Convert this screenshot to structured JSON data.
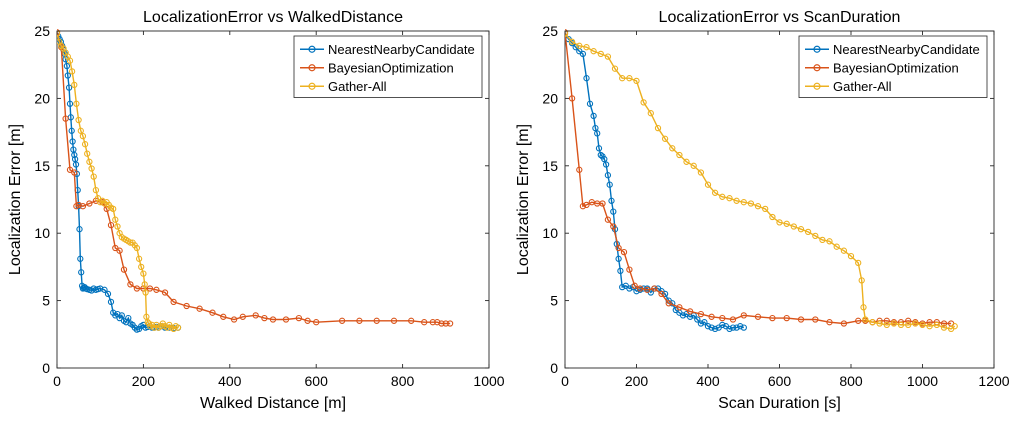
{
  "chart_data": [
    {
      "type": "line",
      "title": "LocalizationError vs WalkedDistance",
      "xlabel": "Walked Distance [m]",
      "ylabel": "Localization Error [m]",
      "xlim": [
        0,
        1000
      ],
      "ylim": [
        0,
        25
      ],
      "xticks": [
        0,
        200,
        400,
        600,
        800,
        1000
      ],
      "yticks": [
        0,
        5,
        10,
        15,
        20,
        25
      ],
      "legend_position": "top-right",
      "grid": false,
      "series": [
        {
          "name": "NearestNearbyCandidate",
          "color": "#0072BD",
          "x": [
            0,
            3,
            6,
            9,
            12,
            15,
            18,
            20,
            23,
            25,
            28,
            30,
            32,
            34,
            36,
            38,
            40,
            42,
            44,
            46,
            48,
            50,
            52,
            54,
            56,
            58,
            60,
            62,
            64,
            67,
            70,
            75,
            80,
            85,
            90,
            95,
            100,
            110,
            118,
            125,
            130,
            135,
            140,
            145,
            150,
            155,
            160,
            165,
            170,
            175,
            180,
            185,
            190,
            195,
            200,
            205,
            210,
            215,
            220,
            225,
            230,
            235,
            240,
            250,
            260,
            270,
            280
          ],
          "y": [
            24.8,
            24.6,
            24.4,
            24.2,
            23.9,
            23.6,
            23.3,
            22.9,
            22.4,
            21.7,
            20.8,
            19.6,
            18.6,
            17.6,
            16.8,
            16.2,
            15.8,
            15.5,
            15.1,
            14.4,
            13.2,
            12.0,
            10.3,
            8.1,
            7.1,
            6.1,
            5.9,
            5.95,
            6.0,
            5.9,
            5.85,
            5.8,
            5.75,
            5.9,
            5.8,
            5.85,
            5.9,
            5.8,
            5.5,
            4.9,
            4.1,
            3.9,
            4.0,
            3.7,
            3.9,
            3.5,
            3.4,
            3.7,
            3.3,
            3.2,
            3.0,
            2.85,
            2.9,
            3.1,
            3.2,
            3.0,
            3.05,
            3.1,
            3.0,
            3.0,
            3.05,
            3.0,
            3.1,
            3.0,
            3.0,
            2.95,
            3.0
          ]
        },
        {
          "name": "BayesianOptimization",
          "color": "#D95319",
          "x": [
            0,
            10,
            20,
            30,
            40,
            45,
            50,
            60,
            75,
            90,
            105,
            115,
            125,
            135,
            145,
            155,
            170,
            185,
            200,
            215,
            230,
            250,
            270,
            300,
            330,
            360,
            385,
            410,
            430,
            460,
            480,
            500,
            530,
            560,
            580,
            600,
            660,
            700,
            740,
            780,
            820,
            850,
            870,
            880,
            890,
            900,
            910
          ],
          "y": [
            24.9,
            23.8,
            18.5,
            14.7,
            14.5,
            12.0,
            12.1,
            12.0,
            12.2,
            12.4,
            12.3,
            11.8,
            10.6,
            8.9,
            8.7,
            7.3,
            6.2,
            5.9,
            5.9,
            5.9,
            5.8,
            5.6,
            4.9,
            4.6,
            4.4,
            4.1,
            3.8,
            3.6,
            3.8,
            3.9,
            3.7,
            3.6,
            3.6,
            3.7,
            3.5,
            3.4,
            3.5,
            3.5,
            3.5,
            3.5,
            3.5,
            3.4,
            3.4,
            3.4,
            3.3,
            3.3,
            3.3
          ]
        },
        {
          "name": "Gather-All",
          "color": "#EDB120",
          "x": [
            0,
            5,
            10,
            15,
            20,
            25,
            30,
            35,
            40,
            45,
            50,
            55,
            60,
            65,
            70,
            75,
            80,
            85,
            90,
            95,
            100,
            105,
            110,
            115,
            120,
            125,
            130,
            135,
            140,
            145,
            150,
            155,
            160,
            165,
            170,
            175,
            180,
            185,
            190,
            195,
            200,
            203,
            205,
            207,
            210,
            213,
            216,
            220,
            225,
            230,
            235,
            240,
            245,
            250,
            255,
            260,
            265,
            270,
            275,
            280
          ],
          "y": [
            24.8,
            24.2,
            23.9,
            23.7,
            23.4,
            23.1,
            22.8,
            22.0,
            21.0,
            19.6,
            18.4,
            17.6,
            17.2,
            16.6,
            15.9,
            15.3,
            14.8,
            14.2,
            13.2,
            12.6,
            12.3,
            12.4,
            12.2,
            12.3,
            12.1,
            11.9,
            11.8,
            11.0,
            10.5,
            10.0,
            9.7,
            9.6,
            9.5,
            9.4,
            9.3,
            9.3,
            9.1,
            8.9,
            8.1,
            7.5,
            7.0,
            6.2,
            5.6,
            3.8,
            3.4,
            3.3,
            3.1,
            3.2,
            3.0,
            3.2,
            3.0,
            3.1,
            3.3,
            3.1,
            3.0,
            3.2,
            3.0,
            2.9,
            3.1,
            3.0
          ]
        }
      ]
    },
    {
      "type": "line",
      "title": "LocalizationError vs ScanDuration",
      "xlabel": "Scan Duration [s]",
      "ylabel": "Localization Error [m]",
      "xlim": [
        0,
        1200
      ],
      "ylim": [
        0,
        25
      ],
      "xticks": [
        0,
        200,
        400,
        600,
        800,
        1000,
        1200
      ],
      "yticks": [
        0,
        5,
        10,
        15,
        20,
        25
      ],
      "legend_position": "top-right",
      "grid": false,
      "series": [
        {
          "name": "NearestNearbyCandidate",
          "color": "#0072BD",
          "x": [
            0,
            10,
            20,
            30,
            40,
            50,
            60,
            70,
            80,
            85,
            90,
            95,
            100,
            105,
            110,
            115,
            120,
            125,
            130,
            135,
            140,
            145,
            150,
            155,
            160,
            170,
            180,
            190,
            200,
            210,
            220,
            230,
            240,
            250,
            260,
            270,
            280,
            290,
            300,
            310,
            320,
            330,
            340,
            350,
            360,
            370,
            380,
            390,
            400,
            410,
            420,
            430,
            440,
            450,
            460,
            470,
            480,
            490,
            500
          ],
          "y": [
            24.8,
            24.4,
            24.1,
            23.8,
            23.5,
            23.3,
            21.5,
            19.6,
            18.7,
            17.8,
            17.4,
            16.3,
            15.8,
            15.7,
            15.5,
            15.1,
            14.3,
            13.6,
            12.4,
            11.6,
            10.3,
            9.2,
            8.1,
            7.2,
            6.0,
            6.1,
            5.9,
            6.0,
            5.7,
            5.8,
            5.9,
            5.9,
            5.6,
            5.9,
            5.9,
            5.7,
            5.5,
            5.0,
            4.8,
            4.3,
            4.1,
            3.9,
            4.0,
            3.8,
            3.9,
            3.6,
            3.3,
            3.4,
            3.1,
            3.0,
            2.9,
            3.0,
            3.2,
            3.1,
            2.9,
            3.0,
            3.0,
            3.1,
            3.0
          ]
        },
        {
          "name": "BayesianOptimization",
          "color": "#D95319",
          "x": [
            0,
            20,
            40,
            50,
            60,
            75,
            90,
            105,
            120,
            135,
            150,
            165,
            180,
            195,
            210,
            230,
            250,
            270,
            290,
            320,
            350,
            380,
            410,
            440,
            470,
            500,
            540,
            580,
            620,
            660,
            700,
            740,
            780,
            820,
            840,
            860,
            880,
            900,
            920,
            940,
            960,
            980,
            1000,
            1020,
            1040,
            1060,
            1080
          ],
          "y": [
            24.9,
            20.0,
            14.7,
            12.0,
            12.1,
            12.3,
            12.2,
            12.2,
            11.0,
            10.5,
            8.9,
            8.6,
            7.3,
            6.1,
            5.9,
            5.8,
            5.9,
            5.5,
            4.8,
            4.5,
            4.2,
            4.0,
            3.8,
            3.7,
            3.6,
            3.9,
            3.8,
            3.7,
            3.7,
            3.6,
            3.6,
            3.4,
            3.3,
            3.5,
            3.5,
            3.4,
            3.5,
            3.5,
            3.4,
            3.4,
            3.5,
            3.4,
            3.3,
            3.4,
            3.4,
            3.3,
            3.3
          ]
        },
        {
          "name": "Gather-All",
          "color": "#EDB120",
          "x": [
            0,
            20,
            40,
            60,
            80,
            100,
            120,
            140,
            160,
            180,
            200,
            220,
            240,
            260,
            280,
            300,
            320,
            340,
            360,
            380,
            400,
            420,
            440,
            460,
            480,
            500,
            520,
            540,
            560,
            580,
            600,
            620,
            640,
            660,
            680,
            700,
            720,
            740,
            760,
            780,
            800,
            820,
            830,
            835,
            840,
            860,
            880,
            900,
            920,
            940,
            960,
            980,
            1000,
            1020,
            1040,
            1060,
            1080,
            1090
          ],
          "y": [
            24.8,
            24.2,
            23.9,
            23.8,
            23.5,
            23.3,
            23.1,
            22.2,
            21.5,
            21.5,
            21.3,
            19.7,
            18.9,
            17.8,
            17.0,
            16.3,
            15.8,
            15.3,
            15.0,
            14.5,
            13.6,
            13.0,
            12.7,
            12.6,
            12.4,
            12.3,
            12.2,
            12.0,
            11.8,
            11.2,
            10.8,
            10.7,
            10.5,
            10.3,
            10.1,
            9.8,
            9.5,
            9.4,
            9.0,
            8.7,
            8.3,
            7.8,
            6.5,
            4.5,
            3.6,
            3.4,
            3.3,
            3.2,
            3.3,
            3.2,
            3.2,
            3.3,
            3.2,
            3.1,
            3.2,
            3.0,
            2.9,
            3.1
          ]
        }
      ]
    }
  ]
}
